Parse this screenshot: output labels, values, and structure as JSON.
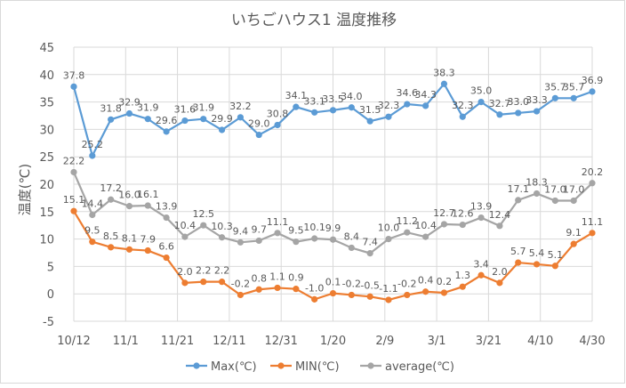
{
  "chart_data": {
    "type": "line",
    "title": "いちごハウス1  温度推移",
    "xlabel": "",
    "ylabel": "温度(℃)",
    "ylim": [
      -5,
      45
    ],
    "yticks": [
      -5,
      0,
      5,
      10,
      15,
      20,
      25,
      30,
      35,
      40,
      45
    ],
    "xlim": [
      "10/12",
      "4/30"
    ],
    "xticks": [
      "10/12",
      "11/1",
      "11/21",
      "12/11",
      "12/31",
      "1/20",
      "2/9",
      "3/1",
      "3/21",
      "4/10",
      "4/30"
    ],
    "grid": true,
    "legend_position": "bottom",
    "data_labels": true,
    "series": [
      {
        "name": "Max(℃)",
        "color": "#5b9bd5",
        "values": [
          37.8,
          25.2,
          31.8,
          32.9,
          31.9,
          29.6,
          31.6,
          31.9,
          29.9,
          32.2,
          29.0,
          30.8,
          34.1,
          33.1,
          33.5,
          34.0,
          31.5,
          32.3,
          34.6,
          34.3,
          38.3,
          32.3,
          35.0,
          32.7,
          33.0,
          33.3,
          35.7,
          35.7,
          36.9
        ]
      },
      {
        "name": "MIN(℃)",
        "color": "#ed7d31",
        "values": [
          15.1,
          9.5,
          8.5,
          8.1,
          7.9,
          6.6,
          2.0,
          2.2,
          2.2,
          -0.2,
          0.8,
          1.1,
          0.9,
          -1.0,
          0.1,
          -0.2,
          -0.5,
          -1.1,
          -0.2,
          0.4,
          0.2,
          1.3,
          3.4,
          2.0,
          5.7,
          5.4,
          5.1,
          9.1,
          11.1
        ]
      },
      {
        "name": "average(℃)",
        "color": "#a5a5a5",
        "values": [
          22.2,
          14.4,
          17.2,
          16.0,
          16.1,
          13.9,
          10.4,
          12.5,
          10.3,
          9.4,
          9.7,
          11.1,
          9.5,
          10.1,
          9.9,
          8.4,
          7.4,
          10.0,
          11.2,
          10.4,
          12.7,
          12.6,
          13.9,
          12.4,
          17.1,
          18.3,
          17.0,
          17.0,
          20.2
        ]
      }
    ]
  }
}
